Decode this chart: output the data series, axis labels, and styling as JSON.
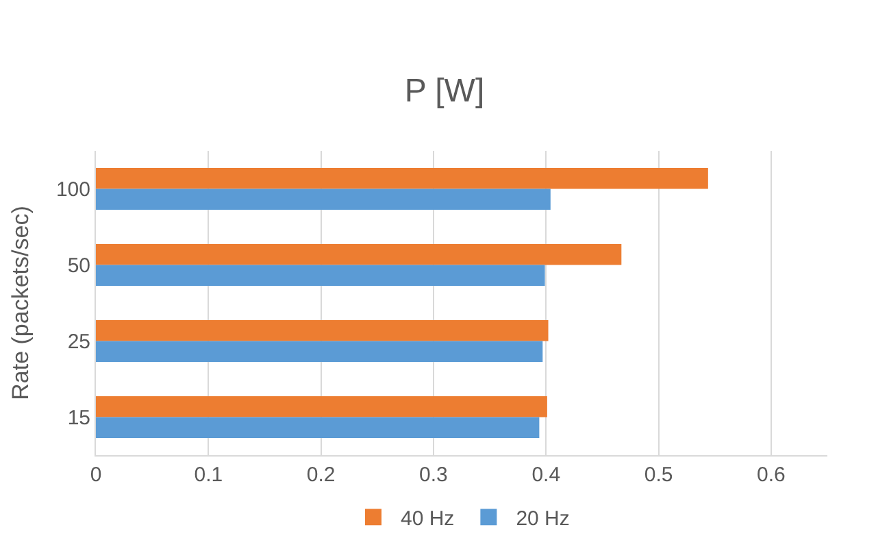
{
  "chart_data": {
    "type": "bar",
    "orientation": "horizontal",
    "title": "P [W]",
    "ylabel": "Rate (packets/sec)",
    "categories": [
      "100",
      "50",
      "25",
      "15"
    ],
    "series": [
      {
        "name": "40 Hz",
        "color": "#ed7d31",
        "values": [
          0.544,
          0.467,
          0.402,
          0.401
        ]
      },
      {
        "name": "20 Hz",
        "color": "#5b9bd5",
        "values": [
          0.404,
          0.399,
          0.397,
          0.394
        ]
      }
    ],
    "xlim": [
      0,
      0.65
    ],
    "xticks": [
      {
        "value": 0,
        "label": "0"
      },
      0.1,
      0.2,
      0.3,
      0.4,
      0.5,
      0.6
    ],
    "grid": "x",
    "legend": "bottom"
  }
}
